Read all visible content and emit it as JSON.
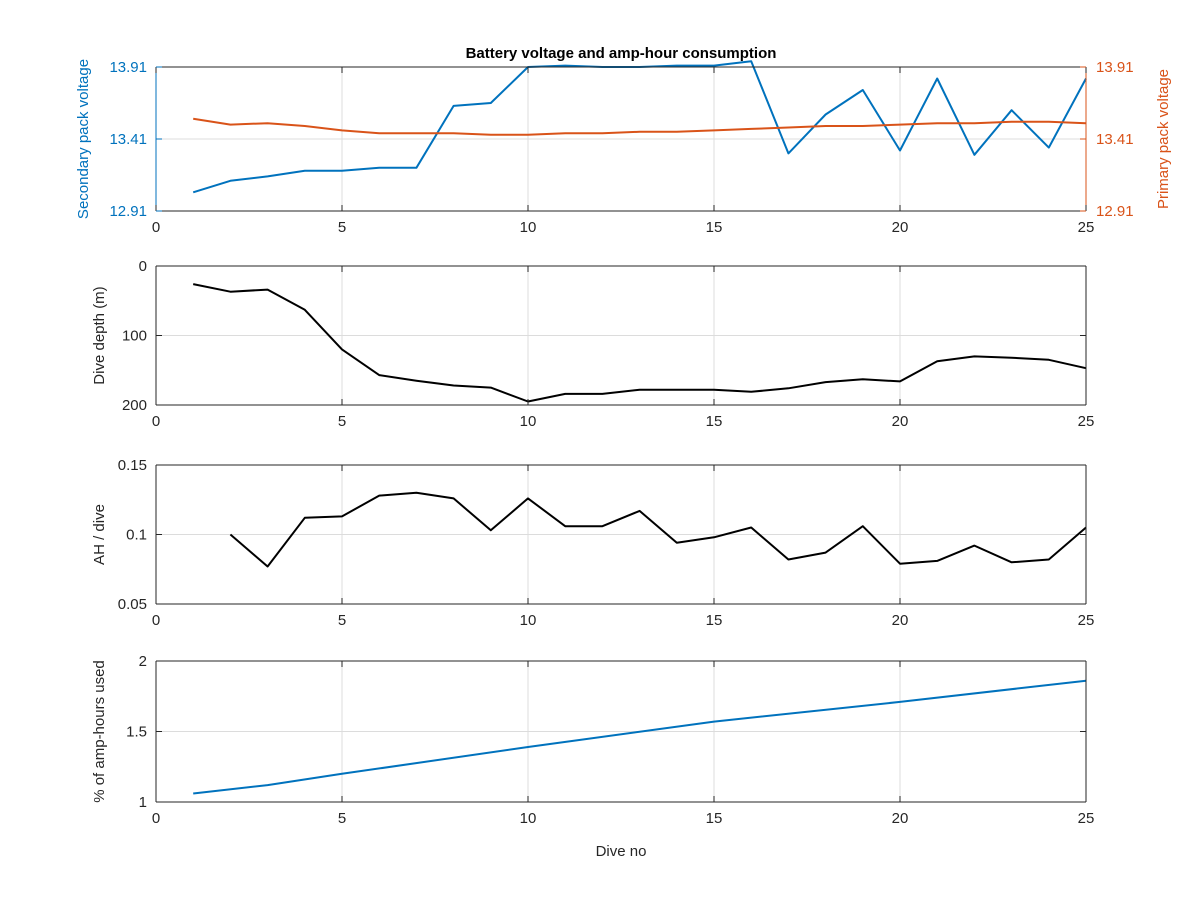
{
  "colors": {
    "secondary": "#0072BD",
    "primary": "#D95319",
    "black": "#000000",
    "grid": "#dcdcdc"
  },
  "chart_data": [
    {
      "type": "line",
      "title": "Battery voltage and amp-hour consumption",
      "xlabel": "",
      "ylabel_left": "Secondary pack voltage",
      "ylabel_right": "Primary pack voltage",
      "xlim": [
        0,
        25
      ],
      "ylim": [
        12.91,
        13.91
      ],
      "xticks": [
        "0",
        "5",
        "10",
        "15",
        "20",
        "25"
      ],
      "yticks_left": [
        "12.91",
        "13.41",
        "13.91"
      ],
      "yticks_right": [
        "12.91",
        "13.41",
        "13.91"
      ],
      "grid": true,
      "series": [
        {
          "name": "Secondary pack voltage",
          "axis": "left",
          "color": "#0072BD",
          "x": [
            1,
            2,
            3,
            4,
            5,
            6,
            7,
            8,
            9,
            10,
            11,
            12,
            13,
            14,
            15,
            16,
            17,
            18,
            19,
            20,
            21,
            22,
            23,
            24,
            25
          ],
          "y": [
            13.04,
            13.12,
            13.15,
            13.19,
            13.19,
            13.21,
            13.21,
            13.64,
            13.66,
            13.91,
            13.92,
            13.91,
            13.91,
            13.92,
            13.92,
            13.95,
            13.31,
            13.58,
            13.75,
            13.33,
            13.83,
            13.3,
            13.61,
            13.35,
            13.83
          ]
        },
        {
          "name": "Primary pack voltage",
          "axis": "right",
          "color": "#D95319",
          "x": [
            1,
            2,
            3,
            4,
            5,
            6,
            7,
            8,
            9,
            10,
            11,
            12,
            13,
            14,
            15,
            16,
            17,
            18,
            19,
            20,
            21,
            22,
            23,
            24,
            25
          ],
          "y": [
            13.55,
            13.51,
            13.52,
            13.5,
            13.47,
            13.45,
            13.45,
            13.45,
            13.44,
            13.44,
            13.45,
            13.45,
            13.46,
            13.46,
            13.47,
            13.48,
            13.49,
            13.5,
            13.5,
            13.51,
            13.52,
            13.52,
            13.53,
            13.53,
            13.52
          ]
        }
      ]
    },
    {
      "type": "line",
      "xlabel": "",
      "ylabel": "Dive depth (m)",
      "xlim": [
        0,
        25
      ],
      "ylim": [
        0,
        200
      ],
      "y_reversed": true,
      "xticks": [
        "0",
        "5",
        "10",
        "15",
        "20",
        "25"
      ],
      "yticks": [
        "0",
        "100",
        "200"
      ],
      "grid": true,
      "series": [
        {
          "color": "#000000",
          "x": [
            1,
            2,
            3,
            4,
            5,
            6,
            7,
            8,
            9,
            10,
            11,
            12,
            13,
            14,
            15,
            16,
            17,
            18,
            19,
            20,
            21,
            22,
            23,
            24,
            25
          ],
          "y": [
            26,
            37,
            34,
            63,
            120,
            157,
            165,
            172,
            175,
            195,
            184,
            184,
            178,
            178,
            178,
            181,
            176,
            167,
            163,
            166,
            137,
            130,
            132,
            135,
            147
          ]
        }
      ]
    },
    {
      "type": "line",
      "xlabel": "",
      "ylabel": "AH / dive",
      "xlim": [
        0,
        25
      ],
      "ylim": [
        0.05,
        0.15
      ],
      "xticks": [
        "0",
        "5",
        "10",
        "15",
        "20",
        "25"
      ],
      "yticks": [
        "0.05",
        "0.1",
        "0.15"
      ],
      "grid": true,
      "series": [
        {
          "color": "#000000",
          "x": [
            2,
            3,
            4,
            5,
            6,
            7,
            8,
            9,
            10,
            11,
            12,
            13,
            14,
            15,
            16,
            17,
            18,
            19,
            20,
            21,
            22,
            23,
            24,
            25
          ],
          "y": [
            0.1,
            0.077,
            0.112,
            0.113,
            0.128,
            0.13,
            0.126,
            0.103,
            0.126,
            0.106,
            0.106,
            0.117,
            0.094,
            0.098,
            0.105,
            0.082,
            0.087,
            0.106,
            0.079,
            0.081,
            0.092,
            0.08,
            0.082,
            0.105
          ]
        }
      ]
    },
    {
      "type": "line",
      "xlabel": "Dive no",
      "ylabel": "% of amp-hours used",
      "xlim": [
        0,
        25
      ],
      "ylim": [
        1,
        2
      ],
      "xticks": [
        "0",
        "5",
        "10",
        "15",
        "20",
        "25"
      ],
      "yticks": [
        "1",
        "1.5",
        "2"
      ],
      "grid": true,
      "series": [
        {
          "color": "#0072BD",
          "x": [
            1,
            3,
            5,
            10,
            15,
            20,
            25
          ],
          "y": [
            1.06,
            1.12,
            1.2,
            1.39,
            1.57,
            1.71,
            1.86
          ]
        }
      ]
    }
  ]
}
